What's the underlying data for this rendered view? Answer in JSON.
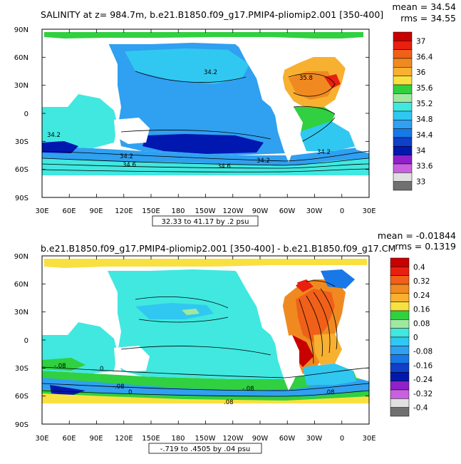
{
  "maps": [
    {
      "title": "SALINITY at z= 984.7m, b.e21.B1850.f09_g17.PMIP4-pliomip2.001 [350-400]",
      "stat_mean": "mean = 34.54",
      "stat_rms": "rms = 34.55",
      "range_label": "32.33 to 41.17 by .2 psu",
      "lat_labels": [
        "90N",
        "60N",
        "30N",
        "0",
        "30S",
        "60S",
        "90S"
      ],
      "lon_labels": [
        "30E",
        "60E",
        "90E",
        "120E",
        "150E",
        "180",
        "150W",
        "120W",
        "90W",
        "60W",
        "30W",
        "0",
        "30E"
      ],
      "contour_labels": [
        "34.2",
        "35.8",
        "34.2",
        "34.2",
        "34.6",
        "34.6",
        "34.2",
        "34.2"
      ],
      "legend_labels": [
        "37",
        "36.4",
        "36",
        "35.6",
        "35.2",
        "34.8",
        "34.4",
        "34",
        "33.6",
        "33"
      ],
      "legend_colors": [
        "#c80000",
        "#e82010",
        "#f06018",
        "#f08a20",
        "#f8b030",
        "#f8e040",
        "#30d040",
        "#a0e8a0",
        "#40e8e0",
        "#30c8f0",
        "#30a0f0",
        "#1878e8",
        "#1040c8",
        "#0018b0",
        "#9020c8",
        "#c860e0",
        "#e0e0e0",
        "#707070"
      ]
    },
    {
      "title": "b.e21.B1850.f09_g17.PMIP4-pliomip2.001 [350-400] - b.e21.B1850.f09_g17.CM",
      "stat_mean": "mean = -0.01844",
      "stat_rms": "rms = 0.1319",
      "range_label": "-.719 to .4505 by .04 psu",
      "lat_labels": [
        "90N",
        "60N",
        "30N",
        "0",
        "30S",
        "60S",
        "90S"
      ],
      "lon_labels": [
        "30E",
        "60E",
        "90E",
        "120E",
        "150E",
        "180",
        "150W",
        "120W",
        "90W",
        "60W",
        "30W",
        "0",
        "30E"
      ],
      "contour_labels": [
        "-.08",
        "0",
        "-.08",
        "0",
        "-.08",
        ".08",
        ".08"
      ],
      "legend_labels": [
        "0.4",
        "0.32",
        "0.24",
        "0.16",
        "0.08",
        "0",
        "-0.08",
        "-0.16",
        "-0.24",
        "-0.32",
        "-0.4"
      ],
      "legend_colors": [
        "#c80000",
        "#e82010",
        "#f06018",
        "#f08a20",
        "#f8b030",
        "#f8e040",
        "#30d040",
        "#a0e8a0",
        "#40e8e0",
        "#30c8f0",
        "#30a0f0",
        "#1878e8",
        "#1040c8",
        "#0018b0",
        "#9020c8",
        "#c860e0",
        "#e0e0e0",
        "#707070"
      ]
    }
  ]
}
